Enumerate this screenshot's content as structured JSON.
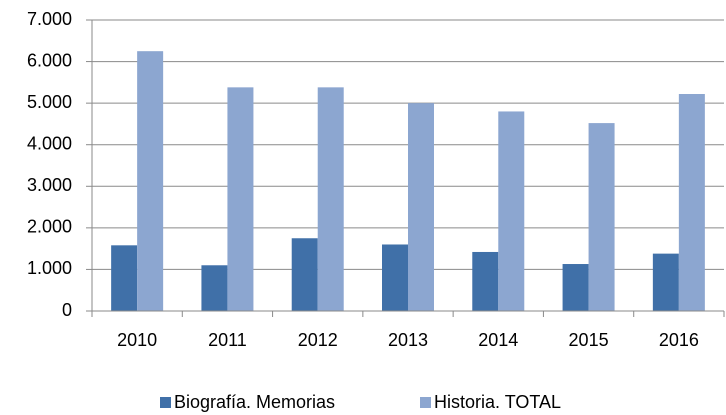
{
  "chart_data": {
    "type": "bar",
    "categories": [
      "2010",
      "2011",
      "2012",
      "2013",
      "2014",
      "2015",
      "2016"
    ],
    "series": [
      {
        "name": "Biografía. Memorias",
        "color": "#4070a8",
        "values": [
          1580,
          1100,
          1750,
          1600,
          1420,
          1130,
          1380
        ]
      },
      {
        "name": "Historia. TOTAL",
        "color": "#8ca6d0",
        "values": [
          6250,
          5380,
          5380,
          5000,
          4800,
          4520,
          5220
        ]
      }
    ],
    "ylim": [
      0,
      7000
    ],
    "yticks": [
      0,
      {
        "value": 1000,
        "label": "1.000"
      },
      {
        "value": 2000,
        "label": "2.000"
      },
      {
        "value": 3000,
        "label": "3.000"
      },
      {
        "value": 4000,
        "label": "4.000"
      },
      {
        "value": 5000,
        "label": "5.000"
      },
      {
        "value": 6000,
        "label": "6.000"
      },
      {
        "value": 7000,
        "label": "7.000"
      }
    ],
    "grid": true,
    "legend": "bottom"
  }
}
